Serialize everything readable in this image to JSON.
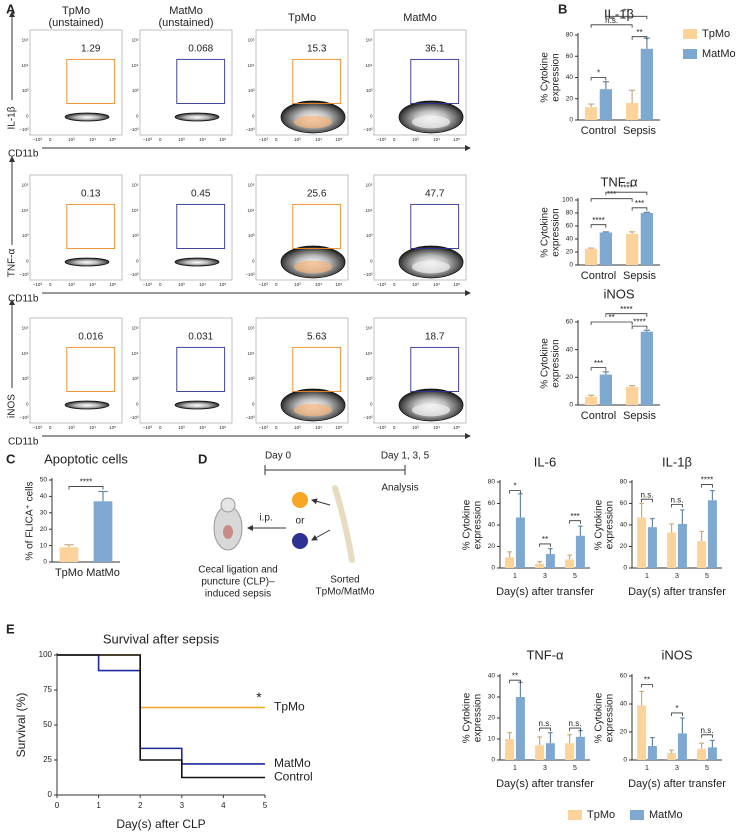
{
  "panel_labels": [
    "A",
    "B",
    "C",
    "D",
    "E"
  ],
  "flow": {
    "columns": [
      {
        "label": [
          "TpMo",
          "(unstained)"
        ],
        "color": "#f08a24"
      },
      {
        "label": [
          "MatMo",
          "(unstained)"
        ],
        "color": "#2e3192"
      },
      {
        "label": [
          "TpMo"
        ],
        "color": "#f08a24"
      },
      {
        "label": [
          "MatMo"
        ],
        "color": "#2e3192"
      }
    ],
    "rows": [
      {
        "marker": "IL-1β",
        "gates": [
          1.29,
          0.068,
          15.3,
          36.1
        ]
      },
      {
        "marker": "TNF-α",
        "gates": [
          0.13,
          0.45,
          25.6,
          47.7
        ]
      },
      {
        "marker": "iNOS",
        "gates": [
          0.016,
          0.031,
          5.63,
          18.7
        ]
      }
    ],
    "x_axis_label": "CD11b",
    "xticks": [
      "−10³",
      "0",
      "10³",
      "10⁴",
      "10⁵"
    ],
    "yticks": [
      "−10³",
      "0",
      "10³",
      "10⁴",
      "10⁵"
    ]
  },
  "schematic": {
    "day0": "Day 0",
    "days": "Day 1, 3, 5",
    "analysis": "Analysis",
    "route": "i.p.",
    "or": "or",
    "model": [
      "Cecal ligation and",
      "puncture (CLP)–",
      "induced sepsis"
    ],
    "cells": [
      "Sorted",
      "TpMo/MatMo"
    ]
  },
  "chart_data": [
    {
      "type": "bar",
      "title": "IL-1β",
      "ylabel": [
        "% Cytokine",
        "expression"
      ],
      "categories": [
        "Control",
        "Sepsis"
      ],
      "series": [
        {
          "name": "TpMo",
          "color": "#fcd49b",
          "values": [
            12,
            16
          ],
          "errors": [
            3,
            12
          ]
        },
        {
          "name": "MatMo",
          "color": "#7ea8cf",
          "values": [
            29,
            67
          ],
          "errors": [
            7,
            10
          ]
        }
      ],
      "ylim": [
        0,
        80
      ],
      "yticks": [
        0,
        20,
        40,
        60,
        80
      ],
      "annotations": [
        "*",
        "n.s.",
        "**",
        "**"
      ],
      "legend": "upper right"
    },
    {
      "type": "bar",
      "title": "TNF-α",
      "ylabel": [
        "% Cytokine",
        "expression"
      ],
      "categories": [
        "Control",
        "Sepsis"
      ],
      "series": [
        {
          "color": "#fcd49b",
          "values": [
            25,
            48
          ],
          "errors": [
            1,
            3
          ]
        },
        {
          "color": "#7ea8cf",
          "values": [
            50,
            80
          ],
          "errors": [
            1,
            1
          ]
        }
      ],
      "ylim": [
        0,
        100
      ],
      "yticks": [
        0,
        20,
        40,
        60,
        80,
        100
      ],
      "annotations": [
        "****",
        "***",
        "****",
        "***"
      ]
    },
    {
      "type": "bar",
      "title": "iNOS",
      "ylabel": [
        "% Cytokine",
        "expression"
      ],
      "categories": [
        "Control",
        "Sepsis"
      ],
      "series": [
        {
          "color": "#fcd49b",
          "values": [
            6,
            13
          ],
          "errors": [
            1,
            1
          ]
        },
        {
          "color": "#7ea8cf",
          "values": [
            22,
            53
          ],
          "errors": [
            2,
            1
          ]
        }
      ],
      "ylim": [
        0,
        60
      ],
      "yticks": [
        0,
        20,
        40,
        60
      ],
      "annotations": [
        "***",
        "**",
        "****",
        "****"
      ]
    },
    {
      "type": "bar",
      "title": "Apoptotic cells",
      "ylabel": [
        "% of FLICA⁺ cells"
      ],
      "categories": [
        "TpMo",
        "MatMo"
      ],
      "values": [
        9,
        37
      ],
      "errors": [
        1.5,
        6
      ],
      "colors": [
        "#fcd49b",
        "#7ea8cf"
      ],
      "ylim": [
        0,
        50
      ],
      "yticks": [
        0,
        10,
        20,
        30,
        40,
        50
      ],
      "annotations": [
        "****"
      ]
    },
    {
      "type": "bar",
      "title": "IL-6",
      "ylabel": [
        "% Cytokine",
        "expression"
      ],
      "xlabel": "Day(s) after transfer",
      "categories": [
        "1",
        "3",
        "5"
      ],
      "series": [
        {
          "name": "TpMo",
          "color": "#fcd49b",
          "values": [
            10,
            4,
            8
          ],
          "errors": [
            5,
            2,
            4
          ]
        },
        {
          "name": "MatMo",
          "color": "#7ea8cf",
          "values": [
            47,
            13,
            30
          ],
          "errors": [
            22,
            5,
            9
          ]
        }
      ],
      "ylim": [
        0,
        80
      ],
      "yticks": [
        0,
        20,
        40,
        60,
        80
      ],
      "annotations": [
        "*",
        "**",
        "***"
      ],
      "legend": "lower center"
    },
    {
      "type": "bar",
      "title": "IL-1β",
      "ylabel": [
        "% Cytokine",
        "expression"
      ],
      "xlabel": "Day(s) after transfer",
      "categories": [
        "1",
        "3",
        "5"
      ],
      "series": [
        {
          "color": "#fcd49b",
          "values": [
            47,
            33,
            25
          ],
          "errors": [
            13,
            8,
            9
          ]
        },
        {
          "color": "#7ea8cf",
          "values": [
            38,
            41,
            63
          ],
          "errors": [
            8,
            13,
            9
          ]
        }
      ],
      "ylim": [
        0,
        80
      ],
      "yticks": [
        0,
        20,
        40,
        60,
        80
      ],
      "annotations": [
        "n.s.",
        "n.s.",
        "****"
      ]
    },
    {
      "type": "bar",
      "title": "TNF-α",
      "ylabel": [
        "% Cytokine",
        "expression"
      ],
      "xlabel": "Day(s) after transfer",
      "categories": [
        "1",
        "3",
        "5"
      ],
      "series": [
        {
          "color": "#fcd49b",
          "values": [
            10,
            7,
            8
          ],
          "errors": [
            3,
            4,
            4
          ]
        },
        {
          "color": "#7ea8cf",
          "values": [
            30,
            8,
            11
          ],
          "errors": [
            7,
            5,
            3
          ]
        }
      ],
      "ylim": [
        0,
        40
      ],
      "yticks": [
        0,
        10,
        20,
        30,
        40
      ],
      "annotations": [
        "**",
        "n.s.",
        "n.s."
      ]
    },
    {
      "type": "bar",
      "title": "iNOS",
      "ylabel": [
        "% Cytokine",
        "expression"
      ],
      "xlabel": "Day(s) after transfer",
      "categories": [
        "1",
        "3",
        "5"
      ],
      "series": [
        {
          "color": "#fcd49b",
          "values": [
            39,
            5,
            8
          ],
          "errors": [
            10,
            2,
            4
          ]
        },
        {
          "color": "#7ea8cf",
          "values": [
            10,
            19,
            9
          ],
          "errors": [
            6,
            11,
            5
          ]
        }
      ],
      "ylim": [
        0,
        60
      ],
      "yticks": [
        0,
        20,
        40,
        60
      ],
      "annotations": [
        "**",
        "*",
        "n.s."
      ]
    },
    {
      "type": "line",
      "title": "Survival after sepsis",
      "xlabel": "Day(s) after CLP",
      "ylabel": "Survival (%)",
      "series": [
        {
          "name": "TpMo",
          "color": "#f5a623",
          "x": [
            0,
            2,
            2,
            5
          ],
          "values": [
            100,
            100,
            62.5,
            62.5
          ]
        },
        {
          "name": "MatMo",
          "color": "#1f2a9c",
          "x": [
            0,
            1,
            1,
            2,
            2,
            3,
            3,
            5
          ],
          "values": [
            100,
            100,
            88.9,
            88.9,
            33.3,
            33.3,
            22.2,
            22.2
          ]
        },
        {
          "name": "Control",
          "color": "#111111",
          "x": [
            0,
            2,
            2,
            3,
            3,
            5
          ],
          "values": [
            100,
            100,
            25,
            25,
            12.5,
            12.5
          ]
        }
      ],
      "xlim": [
        0,
        5
      ],
      "xticks": [
        0,
        1,
        2,
        3,
        4,
        5
      ],
      "ylim": [
        0,
        100
      ],
      "yticks": [
        0,
        25,
        50,
        75,
        100
      ],
      "annotations": [
        "*"
      ]
    }
  ]
}
